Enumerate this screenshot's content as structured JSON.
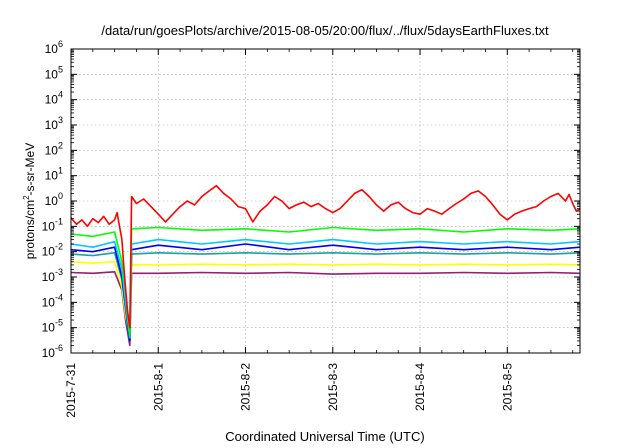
{
  "chart_data": {
    "type": "line",
    "title": "/data/run/goesPlots/archive/2015-08-05/20:00/flux/../flux/5daysEarthFluxes.txt",
    "xlabel": "Coordinated Universal Time (UTC)",
    "ylabel": {
      "pre": "protons/cm",
      "sup": "2",
      "post": "-s-sr-MeV"
    },
    "yscale": "log",
    "ylim": [
      1e-06,
      1000000.0
    ],
    "xlim": [
      "2015-07-31",
      "2015-08-05T20:00"
    ],
    "x_ticks": [
      "2015-7-31",
      "2015-8-1",
      "2015-8-2",
      "2015-8-3",
      "2015-8-4",
      "2015-8-5"
    ],
    "y_ticks": [
      {
        "base": "10",
        "exp": "-6"
      },
      {
        "base": "10",
        "exp": "-5"
      },
      {
        "base": "10",
        "exp": "-4"
      },
      {
        "base": "10",
        "exp": "-3"
      },
      {
        "base": "10",
        "exp": "-2"
      },
      {
        "base": "10",
        "exp": "-1"
      },
      {
        "base": "10",
        "exp": "0"
      },
      {
        "base": "10",
        "exp": "1"
      },
      {
        "base": "10",
        "exp": "2"
      },
      {
        "base": "10",
        "exp": "3"
      },
      {
        "base": "10",
        "exp": "4"
      },
      {
        "base": "10",
        "exp": "5"
      },
      {
        "base": "10",
        "exp": "6"
      }
    ],
    "grid": true,
    "legend": "none",
    "series": [
      {
        "color": "#ff0000",
        "points": [
          [
            "2015-07-31T00:00",
            0.22
          ],
          [
            "2015-07-31T01:30",
            0.12
          ],
          [
            "2015-07-31T03:00",
            0.18
          ],
          [
            "2015-07-31T04:30",
            0.1
          ],
          [
            "2015-07-31T06:00",
            0.2
          ],
          [
            "2015-07-31T07:30",
            0.14
          ],
          [
            "2015-07-31T09:00",
            0.25
          ],
          [
            "2015-07-31T10:30",
            0.12
          ],
          [
            "2015-07-31T12:00",
            0.18
          ],
          [
            "2015-07-31T12:40",
            0.35
          ],
          [
            "2015-07-31T13:20",
            0.1
          ],
          [
            "2015-07-31T14:00",
            0.03
          ],
          [
            "2015-07-31T14:30",
            0.003
          ],
          [
            "2015-07-31T15:00",
            0.0004
          ],
          [
            "2015-07-31T15:30",
            5e-05
          ],
          [
            "2015-07-31T16:10",
            1e-05
          ],
          [
            "2015-07-31T16:40",
            1.5
          ],
          [
            "2015-07-31T18:00",
            0.8
          ],
          [
            "2015-07-31T20:00",
            1.2
          ],
          [
            "2015-07-31T22:00",
            0.6
          ],
          [
            "2015-08-01T00:00",
            0.3
          ],
          [
            "2015-08-01T02:00",
            0.15
          ],
          [
            "2015-08-01T04:00",
            0.3
          ],
          [
            "2015-08-01T06:00",
            0.6
          ],
          [
            "2015-08-01T08:00",
            1.0
          ],
          [
            "2015-08-01T10:00",
            0.7
          ],
          [
            "2015-08-01T12:00",
            1.5
          ],
          [
            "2015-08-01T14:00",
            2.5
          ],
          [
            "2015-08-01T16:00",
            4.0
          ],
          [
            "2015-08-01T18:00",
            2.0
          ],
          [
            "2015-08-01T20:00",
            1.2
          ],
          [
            "2015-08-01T22:00",
            0.6
          ],
          [
            "2015-08-02T00:00",
            0.5
          ],
          [
            "2015-08-02T02:00",
            0.15
          ],
          [
            "2015-08-02T04:00",
            0.4
          ],
          [
            "2015-08-02T06:00",
            0.7
          ],
          [
            "2015-08-02T08:00",
            1.5
          ],
          [
            "2015-08-02T10:00",
            1.0
          ],
          [
            "2015-08-02T12:00",
            0.5
          ],
          [
            "2015-08-02T14:00",
            0.7
          ],
          [
            "2015-08-02T16:00",
            0.9
          ],
          [
            "2015-08-02T18:00",
            0.6
          ],
          [
            "2015-08-02T20:00",
            0.8
          ],
          [
            "2015-08-02T22:00",
            0.5
          ],
          [
            "2015-08-03T00:00",
            0.35
          ],
          [
            "2015-08-03T02:00",
            0.5
          ],
          [
            "2015-08-03T04:00",
            1.0
          ],
          [
            "2015-08-03T06:00",
            2.0
          ],
          [
            "2015-08-03T08:00",
            2.8
          ],
          [
            "2015-08-03T10:00",
            1.5
          ],
          [
            "2015-08-03T12:00",
            0.7
          ],
          [
            "2015-08-03T14:00",
            0.4
          ],
          [
            "2015-08-03T16:00",
            0.7
          ],
          [
            "2015-08-03T18:00",
            0.9
          ],
          [
            "2015-08-03T20:00",
            0.5
          ],
          [
            "2015-08-03T22:00",
            0.35
          ],
          [
            "2015-08-04T00:00",
            0.3
          ],
          [
            "2015-08-04T02:00",
            0.5
          ],
          [
            "2015-08-04T04:00",
            0.4
          ],
          [
            "2015-08-04T06:00",
            0.3
          ],
          [
            "2015-08-04T08:00",
            0.5
          ],
          [
            "2015-08-04T10:00",
            0.8
          ],
          [
            "2015-08-04T12:00",
            1.2
          ],
          [
            "2015-08-04T14:00",
            2.0
          ],
          [
            "2015-08-04T16:00",
            2.5
          ],
          [
            "2015-08-04T18:00",
            1.5
          ],
          [
            "2015-08-04T20:00",
            0.7
          ],
          [
            "2015-08-04T22:00",
            0.3
          ],
          [
            "2015-08-05T00:00",
            0.18
          ],
          [
            "2015-08-05T02:00",
            0.3
          ],
          [
            "2015-08-05T04:00",
            0.4
          ],
          [
            "2015-08-05T06:00",
            0.5
          ],
          [
            "2015-08-05T08:00",
            0.6
          ],
          [
            "2015-08-05T10:00",
            1.0
          ],
          [
            "2015-08-05T12:00",
            1.5
          ],
          [
            "2015-08-05T14:00",
            2.0
          ],
          [
            "2015-08-05T16:00",
            1.0
          ],
          [
            "2015-08-05T17:00",
            1.8
          ],
          [
            "2015-08-05T18:00",
            0.8
          ],
          [
            "2015-08-05T19:00",
            0.4
          ],
          [
            "2015-08-05T20:00",
            0.5
          ]
        ]
      },
      {
        "color": "#00ff00",
        "points": [
          [
            "2015-07-31T00:00",
            0.05
          ],
          [
            "2015-07-31T06:00",
            0.04
          ],
          [
            "2015-07-31T12:00",
            0.06
          ],
          [
            "2015-07-31T14:00",
            0.004
          ],
          [
            "2015-07-31T15:00",
            0.0003
          ],
          [
            "2015-07-31T16:10",
            5e-06
          ],
          [
            "2015-07-31T16:40",
            0.08
          ],
          [
            "2015-08-01T00:00",
            0.09
          ],
          [
            "2015-08-01T12:00",
            0.07
          ],
          [
            "2015-08-02T00:00",
            0.08
          ],
          [
            "2015-08-02T12:00",
            0.06
          ],
          [
            "2015-08-03T00:00",
            0.09
          ],
          [
            "2015-08-03T12:00",
            0.07
          ],
          [
            "2015-08-04T00:00",
            0.08
          ],
          [
            "2015-08-04T12:00",
            0.06
          ],
          [
            "2015-08-05T00:00",
            0.08
          ],
          [
            "2015-08-05T12:00",
            0.07
          ],
          [
            "2015-08-05T20:00",
            0.08
          ]
        ]
      },
      {
        "color": "#00c8ff",
        "points": [
          [
            "2015-07-31T00:00",
            0.02
          ],
          [
            "2015-07-31T06:00",
            0.015
          ],
          [
            "2015-07-31T12:00",
            0.025
          ],
          [
            "2015-07-31T14:00",
            0.002
          ],
          [
            "2015-07-31T15:00",
            0.0001
          ],
          [
            "2015-07-31T16:10",
            4e-06
          ],
          [
            "2015-07-31T16:40",
            0.02
          ],
          [
            "2015-08-01T00:00",
            0.03
          ],
          [
            "2015-08-01T12:00",
            0.02
          ],
          [
            "2015-08-02T00:00",
            0.03
          ],
          [
            "2015-08-02T12:00",
            0.02
          ],
          [
            "2015-08-03T00:00",
            0.03
          ],
          [
            "2015-08-03T12:00",
            0.02
          ],
          [
            "2015-08-04T00:00",
            0.025
          ],
          [
            "2015-08-04T12:00",
            0.02
          ],
          [
            "2015-08-05T00:00",
            0.025
          ],
          [
            "2015-08-05T12:00",
            0.02
          ],
          [
            "2015-08-05T20:00",
            0.025
          ]
        ]
      },
      {
        "color": "#0000ff",
        "points": [
          [
            "2015-07-31T00:00",
            0.012
          ],
          [
            "2015-07-31T06:00",
            0.01
          ],
          [
            "2015-07-31T12:00",
            0.015
          ],
          [
            "2015-07-31T14:00",
            0.001
          ],
          [
            "2015-07-31T15:00",
            8e-05
          ],
          [
            "2015-07-31T16:10",
            3e-06
          ],
          [
            "2015-07-31T16:40",
            0.012
          ],
          [
            "2015-08-01T00:00",
            0.018
          ],
          [
            "2015-08-01T12:00",
            0.012
          ],
          [
            "2015-08-02T00:00",
            0.02
          ],
          [
            "2015-08-02T12:00",
            0.012
          ],
          [
            "2015-08-03T00:00",
            0.018
          ],
          [
            "2015-08-03T12:00",
            0.012
          ],
          [
            "2015-08-04T00:00",
            0.015
          ],
          [
            "2015-08-04T12:00",
            0.012
          ],
          [
            "2015-08-05T00:00",
            0.015
          ],
          [
            "2015-08-05T12:00",
            0.012
          ],
          [
            "2015-08-05T20:00",
            0.015
          ]
        ]
      },
      {
        "color": "#20a0a0",
        "points": [
          [
            "2015-07-31T00:00",
            0.008
          ],
          [
            "2015-07-31T06:00",
            0.007
          ],
          [
            "2015-07-31T12:00",
            0.009
          ],
          [
            "2015-07-31T14:00",
            0.0008
          ],
          [
            "2015-07-31T15:00",
            5e-05
          ],
          [
            "2015-07-31T16:10",
            3e-06
          ],
          [
            "2015-07-31T16:40",
            0.008
          ],
          [
            "2015-08-01T00:00",
            0.009
          ],
          [
            "2015-08-01T12:00",
            0.008
          ],
          [
            "2015-08-02T00:00",
            0.009
          ],
          [
            "2015-08-02T12:00",
            0.008
          ],
          [
            "2015-08-03T00:00",
            0.009
          ],
          [
            "2015-08-03T12:00",
            0.008
          ],
          [
            "2015-08-04T00:00",
            0.009
          ],
          [
            "2015-08-04T12:00",
            0.008
          ],
          [
            "2015-08-05T00:00",
            0.009
          ],
          [
            "2015-08-05T12:00",
            0.008
          ],
          [
            "2015-08-05T20:00",
            0.009
          ]
        ]
      },
      {
        "color": "#ffff00",
        "points": [
          [
            "2015-07-31T00:00",
            0.004
          ],
          [
            "2015-07-31T06:00",
            0.0035
          ],
          [
            "2015-07-31T12:00",
            0.004
          ],
          [
            "2015-07-31T14:00",
            0.0004
          ],
          [
            "2015-07-31T15:00",
            3e-05
          ],
          [
            "2015-07-31T16:10",
            5e-06
          ],
          [
            "2015-07-31T16:40",
            0.003
          ],
          [
            "2015-08-01T00:00",
            0.003
          ],
          [
            "2015-08-01T12:00",
            0.0032
          ],
          [
            "2015-08-02T00:00",
            0.003
          ],
          [
            "2015-08-02T12:00",
            0.0032
          ],
          [
            "2015-08-03T00:00",
            0.003
          ],
          [
            "2015-08-03T12:00",
            0.0032
          ],
          [
            "2015-08-04T00:00",
            0.003
          ],
          [
            "2015-08-04T12:00",
            0.0032
          ],
          [
            "2015-08-05T00:00",
            0.003
          ],
          [
            "2015-08-05T12:00",
            0.0032
          ],
          [
            "2015-08-05T20:00",
            0.003
          ]
        ]
      },
      {
        "color": "#902070",
        "points": [
          [
            "2015-07-31T00:00",
            0.0015
          ],
          [
            "2015-07-31T06:00",
            0.0014
          ],
          [
            "2015-07-31T12:00",
            0.0016
          ],
          [
            "2015-07-31T14:00",
            0.0003
          ],
          [
            "2015-07-31T15:00",
            2e-05
          ],
          [
            "2015-07-31T16:10",
            2e-06
          ],
          [
            "2015-07-31T16:40",
            0.0014
          ],
          [
            "2015-08-01T00:00",
            0.0014
          ],
          [
            "2015-08-01T12:00",
            0.0015
          ],
          [
            "2015-08-02T00:00",
            0.0014
          ],
          [
            "2015-08-02T12:00",
            0.0015
          ],
          [
            "2015-08-03T00:00",
            0.0013
          ],
          [
            "2015-08-03T12:00",
            0.0014
          ],
          [
            "2015-08-04T00:00",
            0.0014
          ],
          [
            "2015-08-04T12:00",
            0.0015
          ],
          [
            "2015-08-05T00:00",
            0.0014
          ],
          [
            "2015-08-05T12:00",
            0.0015
          ],
          [
            "2015-08-05T20:00",
            0.0014
          ]
        ]
      }
    ]
  }
}
